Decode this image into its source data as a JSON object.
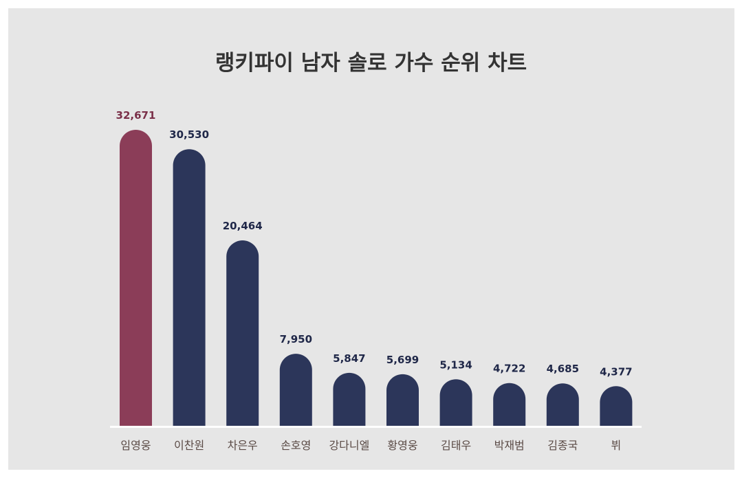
{
  "chart_data": {
    "type": "bar",
    "title": "랭키파이 남자 솔로 가수 순위 차트",
    "categories": [
      "임영웅",
      "이찬원",
      "차은우",
      "손호영",
      "강다니엘",
      "황영웅",
      "김태우",
      "박재범",
      "김종국",
      "뷔"
    ],
    "values": [
      32671,
      30530,
      20464,
      7950,
      5847,
      5699,
      5134,
      4722,
      4685,
      4377
    ],
    "value_labels": [
      "32,671",
      "30,530",
      "20,464",
      "7,950",
      "5,847",
      "5,699",
      "5,134",
      "4,722",
      "4,685",
      "4,377"
    ],
    "highlight_index": 0,
    "xlabel": "",
    "ylabel": "",
    "grid": false,
    "legend": "none"
  },
  "colors": {
    "highlight": "#8b3d58",
    "bar": "#2c365a",
    "highlight_label": "#7a2f48",
    "label": "#1f2748",
    "category": "#5a4a45",
    "baseline": "#ffffff",
    "background": "#e6e6e6"
  }
}
